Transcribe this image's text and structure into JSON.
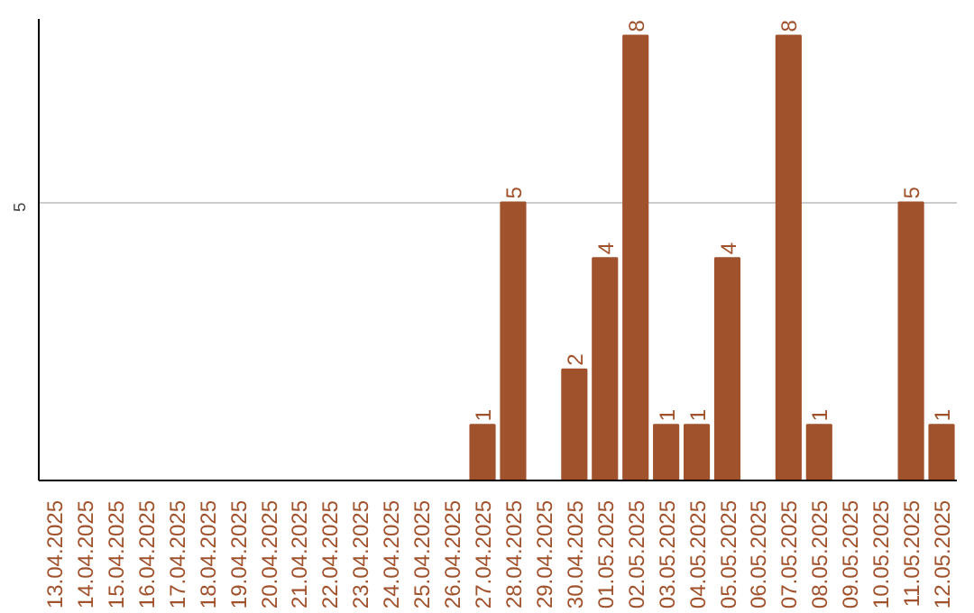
{
  "chart_data": {
    "type": "bar",
    "categories": [
      "13.04.2025",
      "14.04.2025",
      "15.04.2025",
      "16.04.2025",
      "17.04.2025",
      "18.04.2025",
      "19.04.2025",
      "20.04.2025",
      "21.04.2025",
      "22.04.2025",
      "23.04.2025",
      "24.04.2025",
      "25.04.2025",
      "26.04.2025",
      "27.04.2025",
      "28.04.2025",
      "29.04.2025",
      "30.04.2025",
      "01.05.2025",
      "02.05.2025",
      "03.05.2025",
      "04.05.2025",
      "05.05.2025",
      "06.05.2025",
      "07.05.2025",
      "08.05.2025",
      "09.05.2025",
      "10.05.2025",
      "11.05.2025",
      "12.05.2025"
    ],
    "values": [
      null,
      null,
      null,
      null,
      null,
      null,
      null,
      null,
      null,
      null,
      null,
      null,
      null,
      null,
      1,
      5,
      null,
      2,
      4,
      8,
      1,
      1,
      4,
      null,
      8,
      1,
      null,
      null,
      5,
      1
    ],
    "color": "#a0522d",
    "ylim": [
      0,
      8.3
    ],
    "yticks": [
      5
    ],
    "grid": "y",
    "data_labels": true
  }
}
